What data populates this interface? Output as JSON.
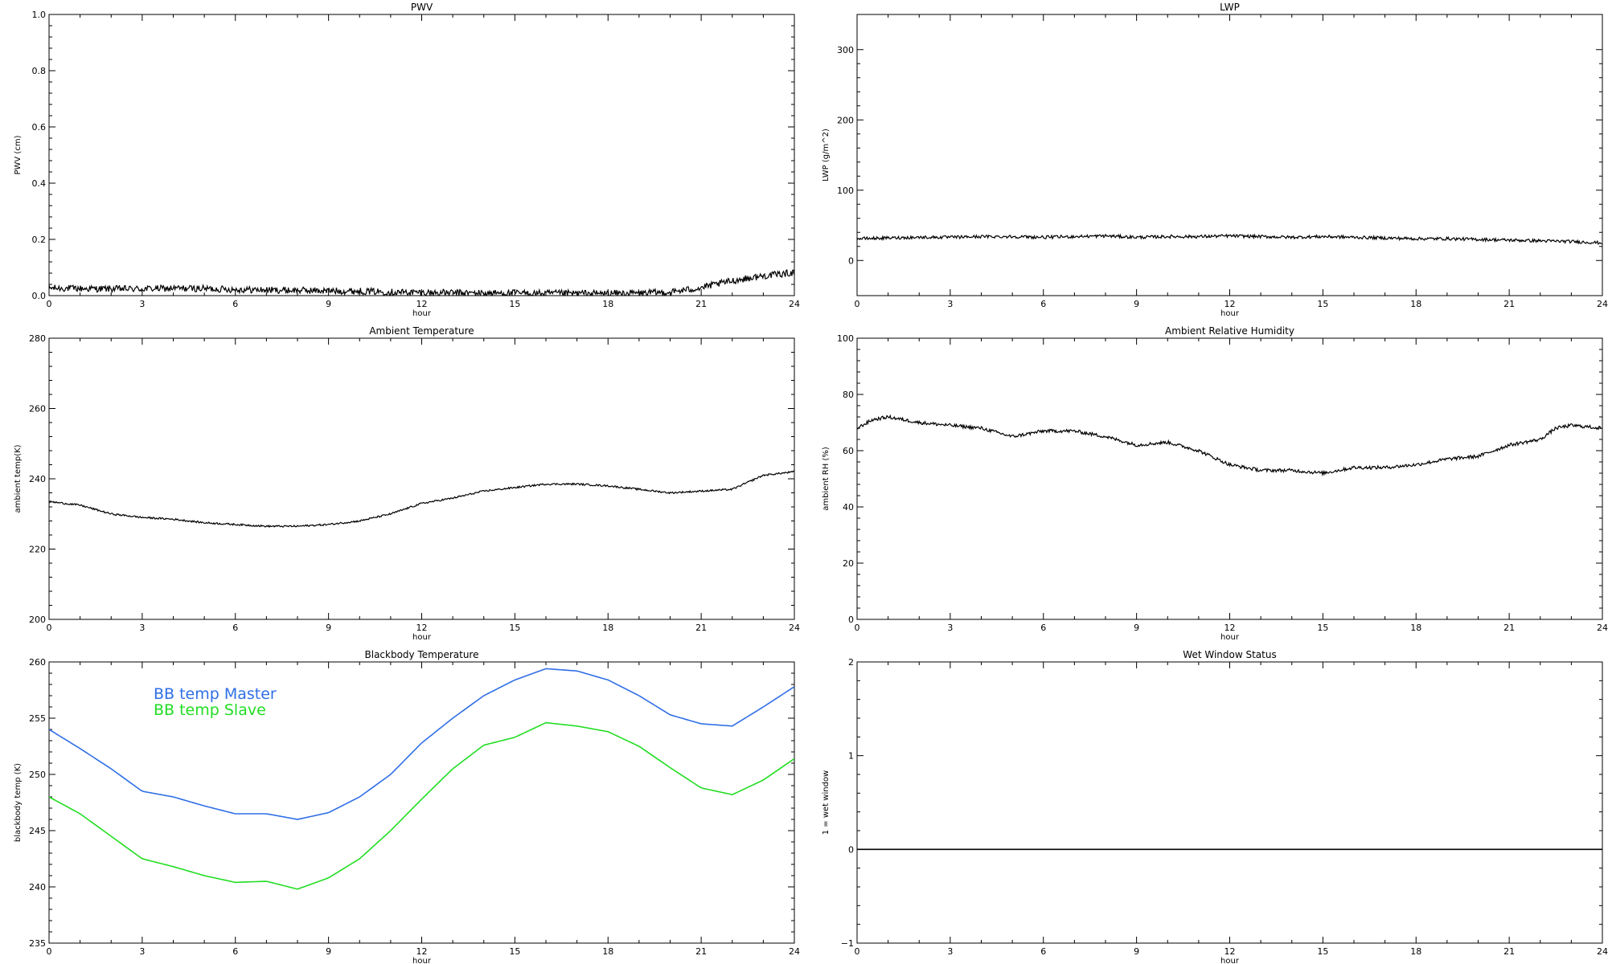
{
  "chart_data": [
    {
      "id": "pwv",
      "type": "line",
      "title": "PWV",
      "xlabel": "hour",
      "ylabel": "PWV (cm)",
      "xlim": [
        0,
        24
      ],
      "ylim": [
        0,
        1.0
      ],
      "xticks": [
        0,
        3,
        6,
        9,
        12,
        15,
        18,
        21,
        24
      ],
      "yticks": [
        0.0,
        0.2,
        0.4,
        0.6,
        0.8,
        1.0
      ],
      "ytick_labels": [
        "0.0",
        "0.2",
        "0.4",
        "0.6",
        "0.8",
        "1.0"
      ],
      "noise": 0.012,
      "series": [
        {
          "color": "#000000",
          "x": [
            0,
            1,
            2,
            3,
            4,
            5,
            6,
            7,
            8,
            9,
            10,
            11,
            12,
            13,
            14,
            15,
            16,
            17,
            18,
            19,
            20,
            21,
            22,
            23,
            24
          ],
          "values": [
            0.027,
            0.025,
            0.024,
            0.024,
            0.026,
            0.025,
            0.022,
            0.02,
            0.019,
            0.017,
            0.016,
            0.013,
            0.011,
            0.01,
            0.009,
            0.009,
            0.008,
            0.008,
            0.008,
            0.009,
            0.012,
            0.028,
            0.053,
            0.07,
            0.082
          ]
        }
      ]
    },
    {
      "id": "lwp",
      "type": "line",
      "title": "LWP",
      "xlabel": "hour",
      "ylabel": "LWP (g/m^2)",
      "xlim": [
        0,
        24
      ],
      "ylim": [
        -50,
        350
      ],
      "xticks": [
        0,
        3,
        6,
        9,
        12,
        15,
        18,
        21,
        24
      ],
      "yticks": [
        0,
        100,
        200,
        300
      ],
      "ytick_labels": [
        "0",
        "100",
        "200",
        "300"
      ],
      "noise": 2.2,
      "series": [
        {
          "color": "#000000",
          "x": [
            0,
            1,
            2,
            3,
            4,
            5,
            6,
            7,
            8,
            9,
            10,
            11,
            12,
            13,
            14,
            15,
            16,
            17,
            18,
            19,
            20,
            21,
            22,
            23,
            24
          ],
          "values": [
            31,
            32,
            33,
            33,
            34,
            34,
            33,
            34,
            35,
            33,
            34,
            34,
            35,
            34,
            33,
            34,
            33,
            32,
            31,
            31,
            30,
            29,
            28,
            27,
            25
          ]
        }
      ]
    },
    {
      "id": "ambient-temperature",
      "type": "line",
      "title": "Ambient Temperature",
      "xlabel": "hour",
      "ylabel": "ambient temp(K)",
      "xlim": [
        0,
        24
      ],
      "ylim": [
        200,
        280
      ],
      "xticks": [
        0,
        3,
        6,
        9,
        12,
        15,
        18,
        21,
        24
      ],
      "yticks": [
        200,
        220,
        240,
        260,
        280
      ],
      "ytick_labels": [
        "200",
        "220",
        "240",
        "260",
        "280"
      ],
      "noise": 0.25,
      "series": [
        {
          "color": "#000000",
          "x": [
            0,
            1,
            2,
            3,
            4,
            5,
            6,
            7,
            8,
            9,
            10,
            11,
            12,
            13,
            14,
            15,
            16,
            17,
            18,
            19,
            20,
            21,
            22,
            23,
            24
          ],
          "values": [
            233.5,
            232.5,
            230,
            229,
            228.5,
            227.5,
            227,
            226.5,
            226.5,
            227,
            228,
            230,
            233,
            234.5,
            236.5,
            237.5,
            238.5,
            238.5,
            238,
            237,
            236,
            236.5,
            237,
            241,
            242
          ]
        }
      ]
    },
    {
      "id": "ambient-relative-humidity",
      "type": "line",
      "title": "Ambient Relative Humidity",
      "xlabel": "hour",
      "ylabel": "ambient RH (%)",
      "xlim": [
        0,
        24
      ],
      "ylim": [
        0,
        100
      ],
      "xticks": [
        0,
        3,
        6,
        9,
        12,
        15,
        18,
        21,
        24
      ],
      "yticks": [
        0,
        20,
        40,
        60,
        80,
        100
      ],
      "ytick_labels": [
        "0",
        "20",
        "40",
        "60",
        "80",
        "100"
      ],
      "noise": 0.6,
      "series": [
        {
          "color": "#000000",
          "x": [
            0,
            0.5,
            1,
            2,
            3,
            4,
            5,
            6,
            7,
            8,
            9,
            10,
            11,
            12,
            13,
            14,
            15,
            16,
            17,
            18,
            19,
            20,
            21,
            22,
            22.5,
            23,
            24
          ],
          "values": [
            68,
            71,
            72,
            70,
            69,
            68,
            65,
            67,
            67,
            65,
            62,
            63,
            60,
            55,
            53,
            53,
            52,
            54,
            54,
            55,
            57,
            58,
            62,
            64,
            68,
            69,
            68
          ]
        }
      ]
    },
    {
      "id": "blackbody-temperature",
      "type": "line",
      "title": "Blackbody Temperature",
      "xlabel": "hour",
      "ylabel": "blackbody temp (K)",
      "xlim": [
        0,
        24
      ],
      "ylim": [
        235,
        260
      ],
      "xticks": [
        0,
        3,
        6,
        9,
        12,
        15,
        18,
        21,
        24
      ],
      "yticks": [
        235,
        240,
        245,
        250,
        255,
        260
      ],
      "ytick_labels": [
        "235",
        "240",
        "245",
        "250",
        "255",
        "260"
      ],
      "noise": 0,
      "legend": {
        "position": "upper-left"
      },
      "series": [
        {
          "name": "BB temp Master",
          "color": "#2f6fe6",
          "x": [
            0,
            1,
            2,
            3,
            4,
            5,
            6,
            7,
            8,
            9,
            10,
            11,
            12,
            13,
            14,
            15,
            16,
            17,
            18,
            19,
            20,
            21,
            22,
            23,
            24
          ],
          "values": [
            254,
            252.3,
            250.5,
            248.5,
            248,
            247.2,
            246.5,
            246.5,
            246,
            246.6,
            248,
            250,
            252.8,
            255,
            257,
            258.4,
            259.4,
            259.2,
            258.4,
            257,
            255.3,
            254.5,
            254.3,
            256,
            257.8
          ]
        },
        {
          "name": "BB temp Slave",
          "color": "#22dd22",
          "x": [
            0,
            1,
            2,
            3,
            4,
            5,
            6,
            7,
            8,
            9,
            10,
            11,
            12,
            13,
            14,
            15,
            16,
            17,
            18,
            19,
            20,
            21,
            22,
            23,
            24
          ],
          "values": [
            248,
            246.5,
            244.5,
            242.5,
            241.8,
            241,
            240.4,
            240.5,
            239.8,
            240.8,
            242.5,
            245,
            247.8,
            250.5,
            252.6,
            253.3,
            254.6,
            254.3,
            253.8,
            252.5,
            250.6,
            248.8,
            248.2,
            249.5,
            251.4
          ]
        }
      ]
    },
    {
      "id": "wet-window-status",
      "type": "line",
      "title": "Wet Window Status",
      "xlabel": "hour",
      "ylabel": "1 = wet window",
      "xlim": [
        0,
        24
      ],
      "ylim": [
        -1,
        2
      ],
      "xticks": [
        0,
        3,
        6,
        9,
        12,
        15,
        18,
        21,
        24
      ],
      "yticks": [
        -1,
        0,
        1,
        2
      ],
      "ytick_labels": [
        "−1",
        "0",
        "1",
        "2"
      ],
      "noise": 0,
      "series": [
        {
          "color": "#000000",
          "x": [
            0,
            24
          ],
          "values": [
            0,
            0
          ]
        }
      ]
    }
  ]
}
